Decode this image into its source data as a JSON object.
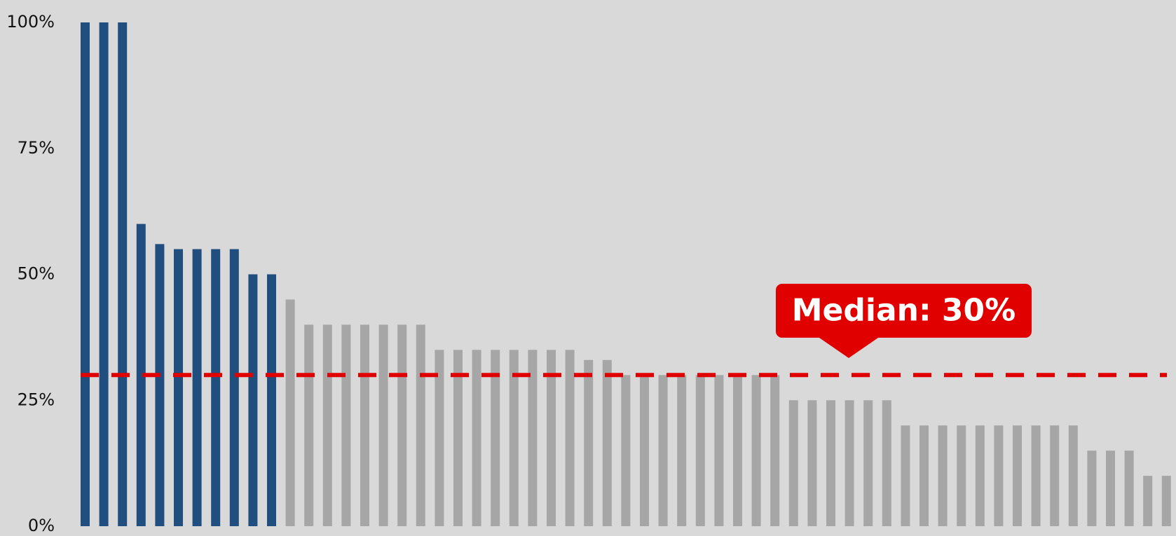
{
  "colors": {
    "background": "#d9d9d9",
    "highlight_bar": "#1f4e7f",
    "other_bar": "#a6a6a6",
    "median_line": "#e00000",
    "callout_bg": "#e00000",
    "callout_text": "#ffffff"
  },
  "chart_data": {
    "type": "bar",
    "ylim": [
      0,
      100
    ],
    "y_ticks": [
      0,
      25,
      50,
      75,
      100
    ],
    "y_tick_labels": [
      "0%",
      "25%",
      "50%",
      "75%",
      "100%"
    ],
    "grid": false,
    "highlighted_count": 11,
    "values": [
      100,
      100,
      100,
      60,
      56,
      55,
      55,
      55,
      55,
      50,
      50,
      45,
      40,
      40,
      40,
      40,
      40,
      40,
      40,
      35,
      35,
      35,
      35,
      35,
      35,
      35,
      35,
      33,
      33,
      30,
      30,
      30,
      30,
      30,
      30,
      30,
      30,
      30,
      25,
      25,
      25,
      25,
      25,
      25,
      20,
      20,
      20,
      20,
      20,
      20,
      20,
      20,
      20,
      20,
      15,
      15,
      15,
      10,
      10
    ],
    "median": {
      "value": 30,
      "label": "Median: 30%"
    }
  }
}
